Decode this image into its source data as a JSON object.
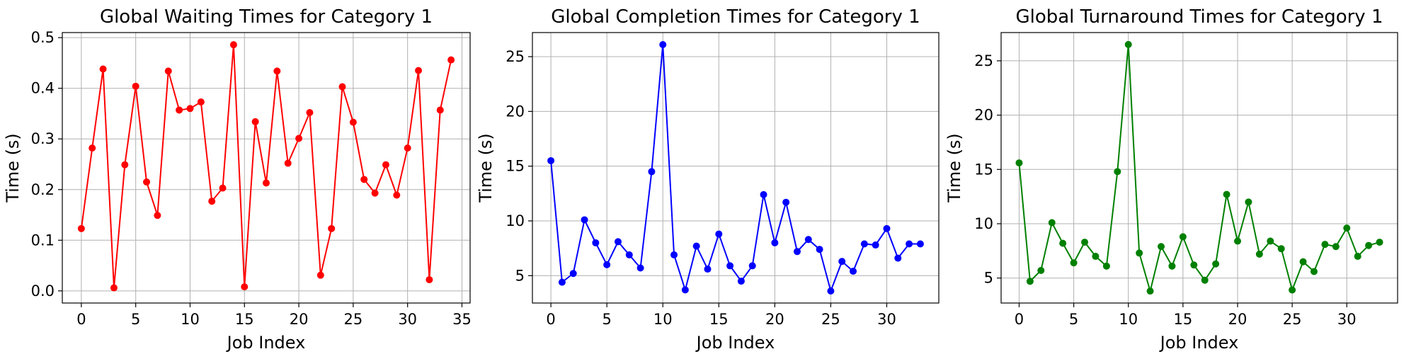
{
  "chart_data": [
    {
      "type": "line",
      "title": "Global Waiting Times for Category 1",
      "xlabel": "Job Index",
      "ylabel": "Time (s)",
      "color": "#ff0000",
      "grid": true,
      "xlim": [
        -1.75,
        35.75
      ],
      "ylim": [
        -0.024,
        0.51
      ],
      "xticks": [
        0,
        5,
        10,
        15,
        20,
        25,
        30,
        35
      ],
      "yticks": [
        0.0,
        0.1,
        0.2,
        0.3,
        0.4,
        0.5
      ],
      "ytick_labels": [
        "0.0",
        "0.1",
        "0.2",
        "0.3",
        "0.4",
        "0.5"
      ],
      "x": [
        0,
        1,
        2,
        3,
        4,
        5,
        6,
        7,
        8,
        9,
        10,
        11,
        12,
        13,
        14,
        15,
        16,
        17,
        18,
        19,
        20,
        21,
        22,
        23,
        24,
        25,
        26,
        27,
        28,
        29,
        30,
        31,
        32,
        33,
        34
      ],
      "y": [
        0.123,
        0.282,
        0.438,
        0.006,
        0.249,
        0.404,
        0.215,
        0.149,
        0.434,
        0.357,
        0.36,
        0.373,
        0.177,
        0.203,
        0.486,
        0.008,
        0.334,
        0.213,
        0.434,
        0.252,
        0.301,
        0.352,
        0.031,
        0.123,
        0.403,
        0.333,
        0.22,
        0.193,
        0.249,
        0.189,
        0.282,
        0.435,
        0.022,
        0.357,
        0.456
      ]
    },
    {
      "type": "line",
      "title": "Global Completion Times for Category 1",
      "xlabel": "Job Index",
      "ylabel": "Time (s)",
      "color": "#0000ff",
      "grid": true,
      "xlim": [
        -1.65,
        34.65
      ],
      "ylim": [
        2.5,
        27.2
      ],
      "xticks": [
        0,
        5,
        10,
        15,
        20,
        25,
        30
      ],
      "yticks": [
        5,
        10,
        15,
        20,
        25
      ],
      "ytick_labels": [
        "5",
        "10",
        "15",
        "20",
        "25"
      ],
      "x": [
        0,
        1,
        2,
        3,
        4,
        5,
        6,
        7,
        8,
        9,
        10,
        11,
        12,
        13,
        14,
        15,
        16,
        17,
        18,
        19,
        20,
        21,
        22,
        23,
        24,
        25,
        26,
        27,
        28,
        29,
        30,
        31,
        32,
        33
      ],
      "y": [
        15.5,
        4.4,
        5.2,
        10.1,
        8.0,
        6.0,
        8.1,
        6.9,
        5.7,
        14.5,
        26.1,
        6.9,
        3.7,
        7.7,
        5.6,
        8.8,
        5.9,
        4.5,
        5.9,
        12.4,
        8.0,
        11.7,
        7.2,
        8.3,
        7.4,
        3.6,
        6.3,
        5.4,
        7.9,
        7.8,
        9.3,
        6.6,
        7.9,
        7.9
      ]
    },
    {
      "type": "line",
      "title": "Global Turnaround Times for Category 1",
      "xlabel": "Job Index",
      "ylabel": "Time (s)",
      "color": "#008000",
      "grid": true,
      "xlim": [
        -1.65,
        34.65
      ],
      "ylim": [
        2.7,
        27.6
      ],
      "xticks": [
        0,
        5,
        10,
        15,
        20,
        25,
        30
      ],
      "yticks": [
        5,
        10,
        15,
        20,
        25
      ],
      "ytick_labels": [
        "5",
        "10",
        "15",
        "20",
        "25"
      ],
      "x": [
        0,
        1,
        2,
        3,
        4,
        5,
        6,
        7,
        8,
        9,
        10,
        11,
        12,
        13,
        14,
        15,
        16,
        17,
        18,
        19,
        20,
        21,
        22,
        23,
        24,
        25,
        26,
        27,
        28,
        29,
        30,
        31,
        32,
        33
      ],
      "y": [
        15.6,
        4.7,
        5.7,
        10.1,
        8.2,
        6.4,
        8.3,
        7.0,
        6.1,
        14.8,
        26.5,
        7.3,
        3.8,
        7.9,
        6.1,
        8.8,
        6.2,
        4.8,
        6.3,
        12.7,
        8.4,
        12.0,
        7.2,
        8.4,
        7.7,
        3.9,
        6.5,
        5.6,
        8.1,
        7.9,
        9.6,
        7.0,
        8.0,
        8.3
      ]
    }
  ]
}
